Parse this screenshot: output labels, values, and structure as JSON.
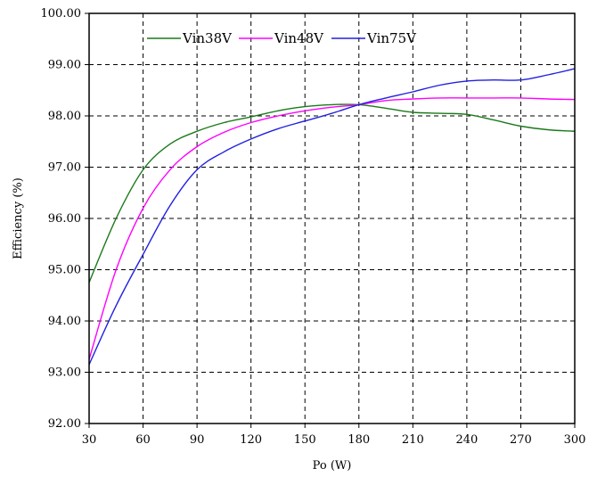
{
  "chart_data": {
    "type": "line",
    "title": "",
    "xlabel": "Po (W)",
    "ylabel": "Efficiency (%)",
    "xlim": [
      30,
      300
    ],
    "ylim": [
      92,
      100
    ],
    "xticks": [
      30,
      60,
      90,
      120,
      150,
      180,
      210,
      240,
      270,
      300
    ],
    "xtick_labels": [
      "30",
      "60",
      "90",
      "120",
      "150",
      "180",
      "210",
      "240",
      "270",
      "300"
    ],
    "yticks": [
      92,
      93,
      94,
      95,
      96,
      97,
      98,
      99,
      100
    ],
    "ytick_labels": [
      "92.00",
      "93.00",
      "94.00",
      "95.00",
      "96.00",
      "97.00",
      "98.00",
      "99.00",
      "100.00"
    ],
    "grid": true,
    "legend_position": "top",
    "series": [
      {
        "name": "Vin38V",
        "color": "#1a7a1a",
        "x": [
          30,
          45,
          60,
          75,
          90,
          105,
          120,
          135,
          150,
          165,
          180,
          195,
          210,
          225,
          240,
          255,
          270,
          285,
          300
        ],
        "y": [
          94.75,
          96.0,
          96.95,
          97.45,
          97.7,
          97.87,
          97.98,
          98.1,
          98.18,
          98.22,
          98.22,
          98.15,
          98.07,
          98.05,
          98.03,
          97.92,
          97.8,
          97.73,
          97.7
        ]
      },
      {
        "name": "Vin48V",
        "color": "#ff00ff",
        "x": [
          30,
          45,
          60,
          75,
          90,
          105,
          120,
          135,
          150,
          165,
          180,
          195,
          210,
          225,
          240,
          255,
          270,
          285,
          300
        ],
        "y": [
          93.25,
          95.0,
          96.2,
          96.95,
          97.4,
          97.68,
          97.87,
          98.0,
          98.1,
          98.17,
          98.22,
          98.3,
          98.33,
          98.35,
          98.35,
          98.35,
          98.35,
          98.33,
          98.32
        ]
      },
      {
        "name": "Vin75V",
        "color": "#2020e0",
        "x": [
          30,
          45,
          60,
          75,
          90,
          105,
          120,
          135,
          150,
          165,
          180,
          195,
          210,
          225,
          240,
          255,
          270,
          285,
          300
        ],
        "y": [
          93.15,
          94.3,
          95.3,
          96.25,
          96.95,
          97.3,
          97.55,
          97.75,
          97.9,
          98.05,
          98.22,
          98.35,
          98.47,
          98.6,
          98.68,
          98.7,
          98.7,
          98.8,
          98.92
        ]
      }
    ]
  }
}
